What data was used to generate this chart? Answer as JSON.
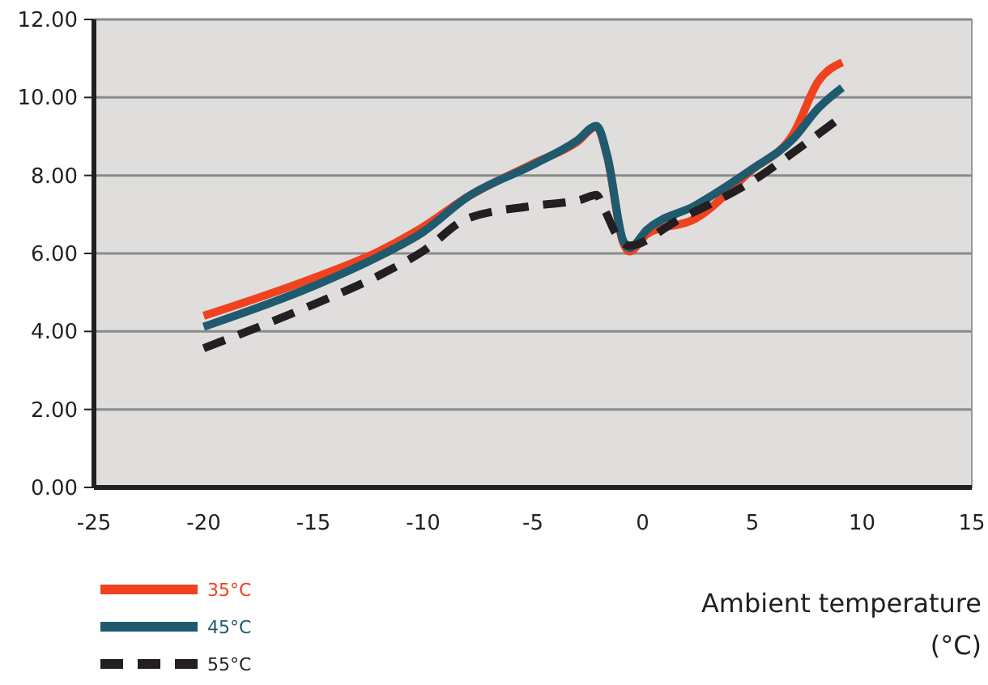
{
  "chart_data": {
    "type": "line",
    "xlabel": "Ambient temperature (°C)",
    "xlim": [
      -25,
      15
    ],
    "xticks": [
      -25,
      -20,
      -15,
      -10,
      -5,
      0,
      5,
      10,
      15
    ],
    "ylim": [
      0,
      12
    ],
    "yticks": [
      {
        "value": 0,
        "label": "0.00"
      },
      {
        "value": 2,
        "label": "2.00"
      },
      {
        "value": 4,
        "label": "4.00"
      },
      {
        "value": 6,
        "label": "6.00"
      },
      {
        "value": 8,
        "label": "8.00"
      },
      {
        "value": 10,
        "label": "10.00"
      },
      {
        "value": 12,
        "label": "12.00"
      }
    ],
    "grid": "y",
    "legend": "bottom left",
    "series": [
      {
        "name": "35°C",
        "color": "#f0421f",
        "line_style": "solid",
        "x": [
          -20,
          -15,
          -12,
          -10,
          -8,
          -5,
          -3,
          -2.1,
          -1.6,
          -0.9,
          -0.6,
          0.2,
          2.4,
          4.9,
          6.9,
          8,
          9.1
        ],
        "values": [
          4.4,
          5.37,
          6.06,
          6.68,
          7.44,
          8.3,
          8.85,
          9.25,
          8.45,
          6.3,
          6.05,
          6.5,
          6.89,
          8.1,
          9.1,
          10.41,
          10.9
        ]
      },
      {
        "name": "45°C",
        "color": "#1f5a6e",
        "line_style": "solid",
        "x": [
          -20,
          -15,
          -12,
          -10,
          -8,
          -5,
          -3,
          -2.1,
          -1.6,
          -0.9,
          -0.6,
          0.2,
          2.4,
          4.9,
          6.9,
          8,
          9.1
        ],
        "values": [
          4.12,
          5.16,
          5.93,
          6.55,
          7.44,
          8.27,
          8.89,
          9.27,
          8.48,
          6.35,
          6.14,
          6.61,
          7.23,
          8.13,
          8.96,
          9.72,
          10.25
        ]
      },
      {
        "name": "55°C",
        "color": "#231f20",
        "line_style": "dashed",
        "x": [
          -20,
          -15,
          -12,
          -10,
          -8,
          -5,
          -2.8,
          -2.1,
          -1.8,
          -1.1,
          -0.6,
          1.5,
          5.4,
          6.6,
          9.1
        ],
        "values": [
          3.57,
          4.69,
          5.44,
          6.06,
          6.89,
          7.22,
          7.38,
          7.5,
          7.2,
          6.4,
          6.2,
          6.82,
          8.0,
          8.48,
          9.52
        ]
      }
    ]
  }
}
